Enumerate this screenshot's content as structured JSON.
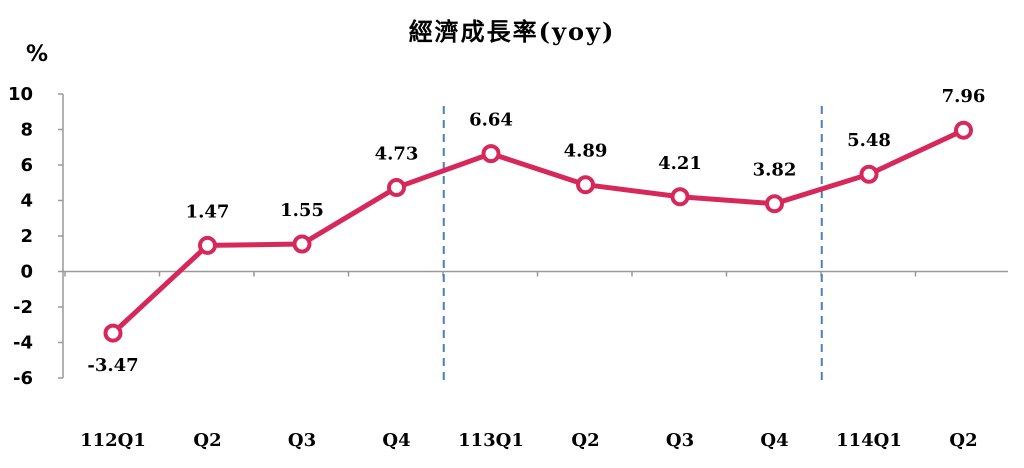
{
  "chart_data": {
    "type": "line",
    "title": "經濟成長率(yoy)",
    "ylabel": "%",
    "xlabel": "",
    "categories": [
      "112Q1",
      "Q2",
      "Q3",
      "Q4",
      "113Q1",
      "Q2",
      "Q3",
      "Q4",
      "114Q1",
      "Q2"
    ],
    "values": [
      -3.47,
      1.47,
      1.55,
      4.73,
      6.64,
      4.89,
      4.21,
      3.82,
      5.48,
      7.96
    ],
    "data_labels": [
      "-3.47",
      "1.47",
      "1.55",
      "4.73",
      "6.64",
      "4.89",
      "4.21",
      "3.82",
      "5.48",
      "7.96"
    ],
    "ylim": [
      -6,
      10
    ],
    "yticks": [
      "10",
      "8",
      "6",
      "4",
      "2",
      "0",
      "-2",
      "-4",
      "-6"
    ],
    "year_separators_after_index": [
      3,
      7
    ],
    "grid": false,
    "legend": "none",
    "colors": {
      "line": "#d6285a",
      "marker_fill": "#ffffff",
      "separator": "#4a7fc0",
      "axis": "#999999"
    }
  }
}
